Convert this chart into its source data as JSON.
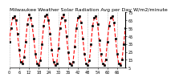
{
  "title": "Milwaukee Weather Solar Radiation Avg per Day W/m2/minute",
  "y_values": [
    38,
    55,
    68,
    70,
    65,
    48,
    28,
    12,
    10,
    18,
    38,
    60,
    72,
    68,
    58,
    42,
    22,
    10,
    8,
    14,
    35,
    58,
    70,
    72,
    65,
    48,
    28,
    12,
    8,
    10,
    30,
    55,
    68,
    72,
    65,
    45,
    25,
    10,
    8,
    12,
    32,
    55,
    68,
    70,
    62,
    42,
    22,
    10,
    8,
    14,
    35,
    58,
    68,
    70,
    60,
    40,
    22,
    10,
    8,
    15,
    38,
    58,
    68,
    70,
    62,
    42,
    22,
    10,
    8,
    15,
    35,
    55
  ],
  "line_color": "#ff0000",
  "marker_color": "#000000",
  "background_color": "#ffffff",
  "grid_color": "#999999",
  "ylim": [
    5,
    75
  ],
  "yticks": [
    5,
    15,
    25,
    35,
    45,
    55,
    65,
    75
  ],
  "n_points": 72,
  "grid_every": 6,
  "title_fontsize": 4.5,
  "tick_fontsize": 3.5
}
